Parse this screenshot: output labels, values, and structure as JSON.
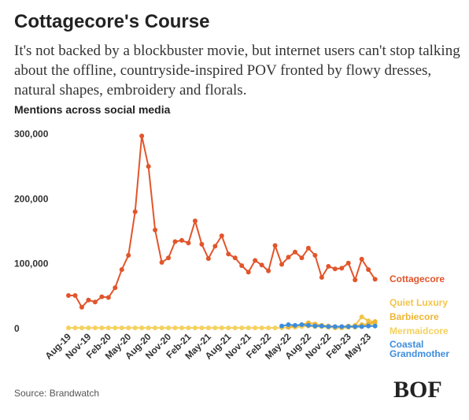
{
  "header": {
    "title": "Cottagecore's Course",
    "subtitle": "It's not backed by a blockbuster movie, but internet users can't stop talking about the offline, countryside-inspired POV fronted by flowy dresses, natural shapes, embroidery and florals."
  },
  "chart_data": {
    "type": "line",
    "title": "Mentions across social media",
    "categories": [
      "Aug-19",
      null,
      null,
      "Nov-19",
      null,
      null,
      "Feb-20",
      null,
      null,
      "May-20",
      null,
      null,
      "Aug-20",
      null,
      null,
      "Nov-20",
      null,
      null,
      "Feb-21",
      null,
      null,
      "May-21",
      null,
      null,
      "Aug-21",
      null,
      null,
      "Nov-21",
      null,
      null,
      "Feb-22",
      null,
      null,
      "May-22",
      null,
      null,
      "Aug-22",
      null,
      null,
      "Nov-22",
      null,
      null,
      "Feb-23",
      null,
      null,
      "May-23",
      null
    ],
    "ylim": [
      0,
      300000
    ],
    "yticks": [
      {
        "value": 0,
        "label": "0"
      },
      {
        "value": 100000,
        "label": "100,000"
      },
      {
        "value": 200000,
        "label": "200,000"
      },
      {
        "value": 300000,
        "label": "300,000"
      }
    ],
    "grid": false,
    "series": [
      {
        "name": "Cottagecore",
        "color": "#e2552b",
        "values": [
          51000,
          51000,
          33000,
          44000,
          41000,
          49000,
          48000,
          63000,
          91000,
          113000,
          180000,
          297000,
          250000,
          152000,
          102000,
          109000,
          134000,
          136000,
          132000,
          166000,
          130000,
          108000,
          127000,
          143000,
          115000,
          109000,
          97000,
          87000,
          105000,
          98000,
          89000,
          128000,
          99000,
          110000,
          118000,
          109000,
          124000,
          113000,
          79000,
          96000,
          92000,
          93000,
          101000,
          75000,
          107000,
          91000,
          76000
        ]
      },
      {
        "name": "Quiet Luxury",
        "color": "#f3c44a",
        "values": [
          null,
          null,
          null,
          null,
          null,
          null,
          null,
          null,
          null,
          null,
          null,
          null,
          null,
          null,
          null,
          null,
          null,
          null,
          null,
          null,
          null,
          null,
          null,
          null,
          null,
          null,
          null,
          null,
          null,
          null,
          null,
          null,
          null,
          null,
          null,
          null,
          null,
          null,
          null,
          null,
          1000,
          1000,
          2000,
          5000,
          18000,
          12000,
          10000
        ]
      },
      {
        "name": "Barbiecore",
        "color": "#eeb535",
        "values": [
          null,
          null,
          null,
          null,
          null,
          null,
          null,
          null,
          null,
          null,
          null,
          null,
          null,
          null,
          null,
          null,
          null,
          null,
          null,
          null,
          null,
          null,
          null,
          null,
          null,
          null,
          null,
          null,
          null,
          null,
          null,
          null,
          null,
          2000,
          4000,
          6000,
          9000,
          7000,
          5000,
          4000,
          3000,
          3000,
          4000,
          4000,
          6000,
          7000,
          11000
        ]
      },
      {
        "name": "Mermaidcore",
        "color": "#f5d15e",
        "values": [
          1000,
          1000,
          1000,
          1000,
          1000,
          1000,
          1000,
          1000,
          1000,
          1000,
          1000,
          1000,
          1000,
          1000,
          1000,
          1000,
          1000,
          1000,
          1000,
          1000,
          1000,
          1000,
          1000,
          1000,
          1000,
          1000,
          1000,
          1000,
          1000,
          1000,
          1000,
          1000,
          1000,
          2000,
          2000,
          3000,
          4000,
          3000,
          3000,
          2000,
          2000,
          2000,
          3000,
          2000,
          4000,
          6000,
          8000
        ]
      },
      {
        "name": "Coastal Grandmother",
        "color": "#3d8ddc",
        "values": [
          null,
          null,
          null,
          null,
          null,
          null,
          null,
          null,
          null,
          null,
          null,
          null,
          null,
          null,
          null,
          null,
          null,
          null,
          null,
          null,
          null,
          null,
          null,
          null,
          null,
          null,
          null,
          null,
          null,
          null,
          null,
          null,
          4000,
          6000,
          5000,
          6000,
          5000,
          4000,
          4000,
          3000,
          3000,
          3000,
          3000,
          3000,
          3000,
          4000,
          4000
        ]
      }
    ]
  },
  "footer": {
    "source": "Source: Brandwatch",
    "logo": "BOF"
  }
}
